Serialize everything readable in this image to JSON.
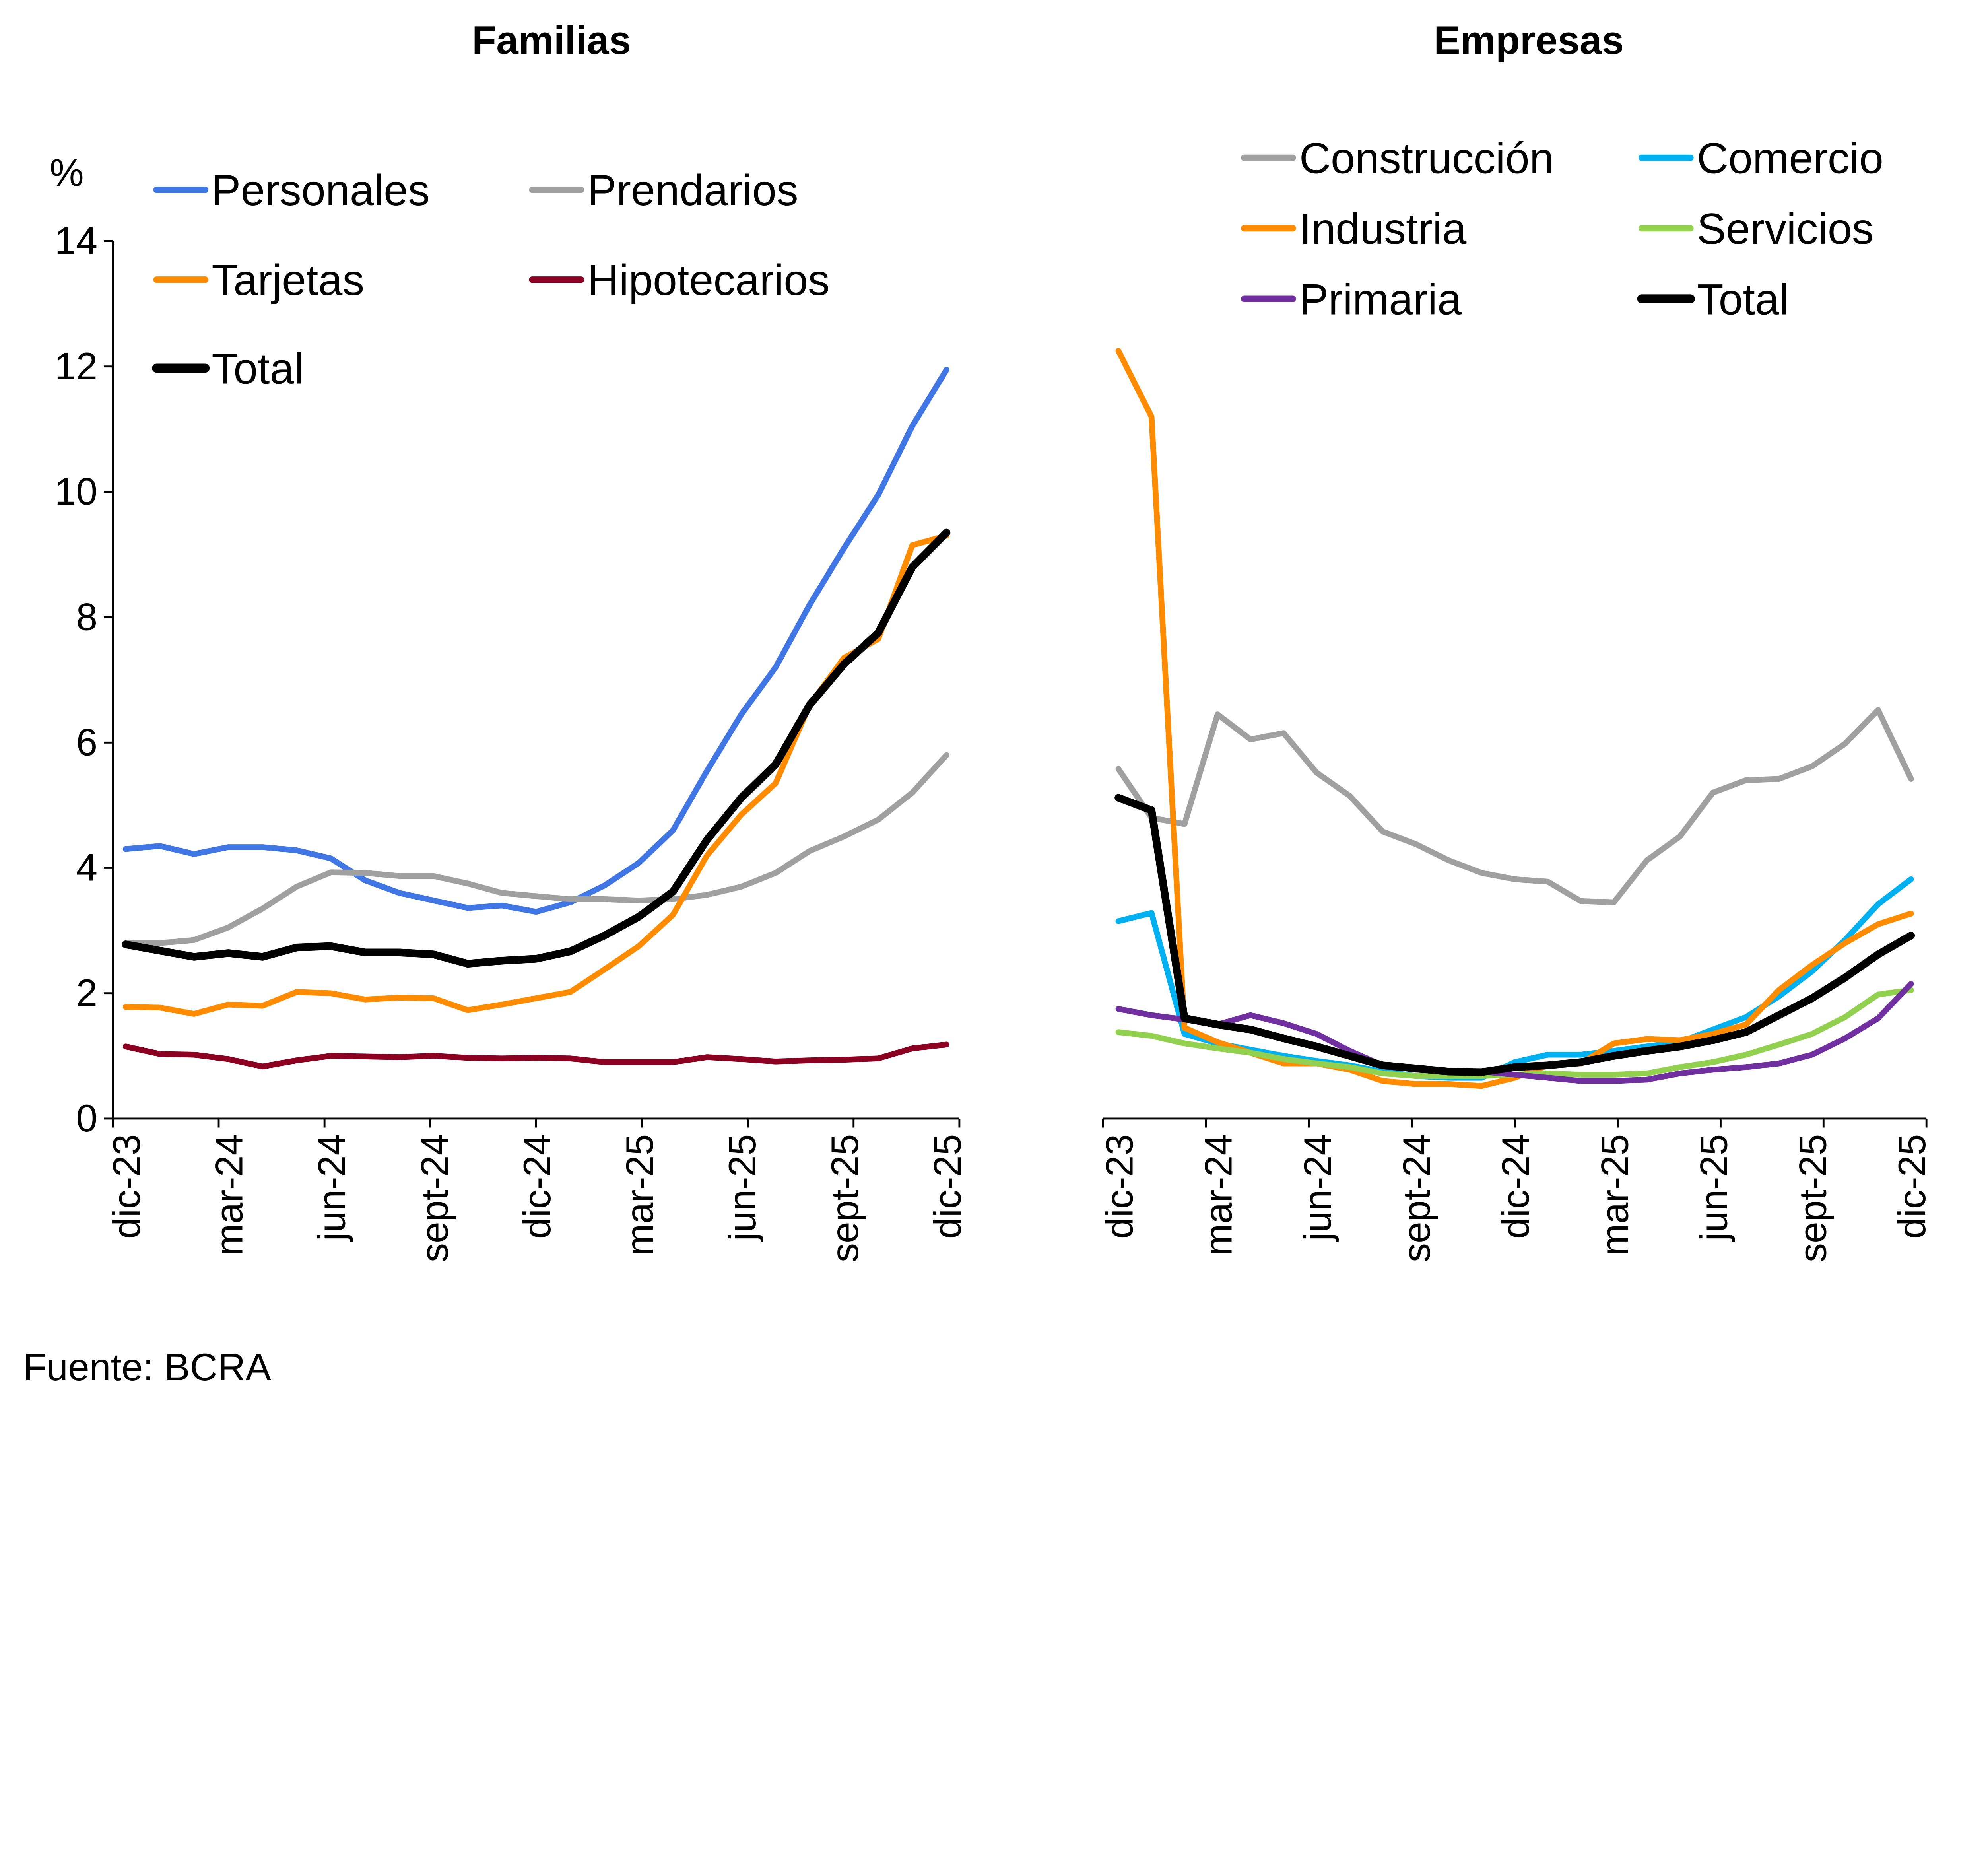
{
  "source": "Fuente: BCRA",
  "chart_data": [
    {
      "type": "line",
      "title": "Familias",
      "ylabel": "%",
      "ylim": [
        0,
        14
      ],
      "yticks": [
        "0",
        "2",
        "4",
        "6",
        "8",
        "10",
        "12",
        "14"
      ],
      "grid": false,
      "legend_placement": "top-left",
      "x": [
        "dic-23",
        "ene-24",
        "feb-24",
        "mar-24",
        "abr-24",
        "may-24",
        "jun-24",
        "jul-24",
        "ago-24",
        "sept-24",
        "oct-24",
        "nov-24",
        "dic-24",
        "ene-25",
        "feb-25",
        "mar-25",
        "abr-25",
        "may-25",
        "jun-25",
        "jul-25",
        "ago-25",
        "sept-25",
        "oct-25",
        "nov-25",
        "dic-25"
      ],
      "xtick_labels": [
        "dic-23",
        "mar-24",
        "jun-24",
        "sept-24",
        "dic-24",
        "mar-25",
        "jun-25",
        "sept-25",
        "dic-25"
      ],
      "series": [
        {
          "name": "Personales",
          "color": "#3f76e4",
          "values": [
            4.3,
            4.35,
            4.22,
            4.33,
            4.33,
            4.28,
            4.15,
            3.8,
            3.6,
            3.48,
            3.36,
            3.4,
            3.3,
            3.45,
            3.72,
            4.08,
            4.6,
            5.55,
            6.45,
            7.2,
            8.2,
            9.1,
            9.95,
            11.05,
            11.95
          ]
        },
        {
          "name": "Prendarios",
          "color": "#a0a0a0",
          "values": [
            2.8,
            2.8,
            2.85,
            3.05,
            3.35,
            3.7,
            3.93,
            3.92,
            3.87,
            3.87,
            3.75,
            3.6,
            3.55,
            3.5,
            3.5,
            3.48,
            3.5,
            3.57,
            3.7,
            3.92,
            4.27,
            4.5,
            4.77,
            5.2,
            5.8
          ]
        },
        {
          "name": "Tarjetas",
          "color": "#ff8c00",
          "values": [
            1.78,
            1.77,
            1.67,
            1.82,
            1.8,
            2.02,
            2.0,
            1.9,
            1.93,
            1.92,
            1.73,
            1.82,
            1.92,
            2.02,
            2.38,
            2.75,
            3.25,
            4.2,
            4.85,
            5.35,
            6.6,
            7.35,
            7.65,
            9.15,
            9.3
          ]
        },
        {
          "name": "Hipotecarios",
          "color": "#8b0020",
          "values": [
            1.15,
            1.03,
            1.02,
            0.95,
            0.83,
            0.93,
            1.0,
            0.99,
            0.98,
            1.0,
            0.97,
            0.96,
            0.97,
            0.96,
            0.9,
            0.9,
            0.9,
            0.98,
            0.95,
            0.91,
            0.93,
            0.94,
            0.96,
            1.12,
            1.18
          ]
        },
        {
          "name": "Total",
          "color": "#000000",
          "values": [
            2.78,
            2.68,
            2.58,
            2.64,
            2.58,
            2.73,
            2.75,
            2.65,
            2.65,
            2.62,
            2.47,
            2.52,
            2.55,
            2.67,
            2.92,
            3.22,
            3.62,
            4.45,
            5.12,
            5.65,
            6.6,
            7.25,
            7.75,
            8.8,
            9.35
          ]
        }
      ]
    },
    {
      "type": "line",
      "title": "Empresas",
      "ylim": [
        0,
        14
      ],
      "grid": false,
      "legend_placement": "top-right",
      "x": [
        "dic-23",
        "ene-24",
        "feb-24",
        "mar-24",
        "abr-24",
        "may-24",
        "jun-24",
        "jul-24",
        "ago-24",
        "sept-24",
        "oct-24",
        "nov-24",
        "dic-24",
        "ene-25",
        "feb-25",
        "mar-25",
        "abr-25",
        "may-25",
        "jun-25",
        "jul-25",
        "ago-25",
        "sept-25",
        "oct-25",
        "nov-25",
        "dic-25"
      ],
      "xtick_labels": [
        "dic-23",
        "mar-24",
        "jun-24",
        "sept-24",
        "dic-24",
        "mar-25",
        "jun-25",
        "sept-25",
        "dic-25"
      ],
      "series": [
        {
          "name": "Construcción",
          "color": "#a0a0a0",
          "values": [
            5.58,
            4.8,
            4.7,
            6.45,
            6.05,
            6.15,
            5.52,
            5.15,
            4.58,
            4.38,
            4.12,
            3.92,
            3.82,
            3.78,
            3.47,
            3.45,
            4.12,
            4.5,
            5.2,
            5.4,
            5.42,
            5.62,
            5.98,
            6.52,
            5.42
          ]
        },
        {
          "name": "Comercio",
          "color": "#00b0f0",
          "values": [
            3.15,
            3.28,
            1.35,
            1.2,
            1.1,
            1.0,
            0.92,
            0.85,
            0.75,
            0.68,
            0.65,
            0.65,
            0.9,
            1.02,
            1.02,
            1.08,
            1.15,
            1.22,
            1.42,
            1.62,
            1.95,
            2.35,
            2.85,
            3.42,
            3.82
          ]
        },
        {
          "name": "Industria",
          "color": "#ff8c00",
          "values": [
            12.25,
            11.2,
            1.45,
            1.22,
            1.05,
            0.88,
            0.88,
            0.78,
            0.6,
            0.55,
            0.55,
            0.52,
            0.65,
            0.85,
            0.88,
            1.2,
            1.27,
            1.25,
            1.35,
            1.5,
            2.05,
            2.45,
            2.8,
            3.1,
            3.27
          ]
        },
        {
          "name": "Servicios",
          "color": "#92d050",
          "values": [
            1.38,
            1.32,
            1.2,
            1.12,
            1.05,
            0.95,
            0.88,
            0.82,
            0.72,
            0.68,
            0.68,
            0.68,
            0.7,
            0.72,
            0.7,
            0.7,
            0.72,
            0.82,
            0.9,
            1.02,
            1.18,
            1.35,
            1.62,
            1.98,
            2.05
          ]
        },
        {
          "name": "Primaria",
          "color": "#7030a0",
          "values": [
            1.75,
            1.65,
            1.58,
            1.5,
            1.65,
            1.52,
            1.35,
            1.08,
            0.85,
            0.78,
            0.75,
            0.75,
            0.7,
            0.65,
            0.6,
            0.6,
            0.62,
            0.72,
            0.78,
            0.82,
            0.88,
            1.02,
            1.28,
            1.6,
            2.15
          ]
        },
        {
          "name": "Total",
          "color": "#000000",
          "values": [
            5.12,
            4.92,
            1.6,
            1.5,
            1.42,
            1.28,
            1.15,
            1.0,
            0.85,
            0.8,
            0.75,
            0.74,
            0.82,
            0.85,
            0.9,
            1.0,
            1.08,
            1.15,
            1.25,
            1.38,
            1.65,
            1.92,
            2.25,
            2.62,
            2.92
          ]
        }
      ]
    }
  ]
}
